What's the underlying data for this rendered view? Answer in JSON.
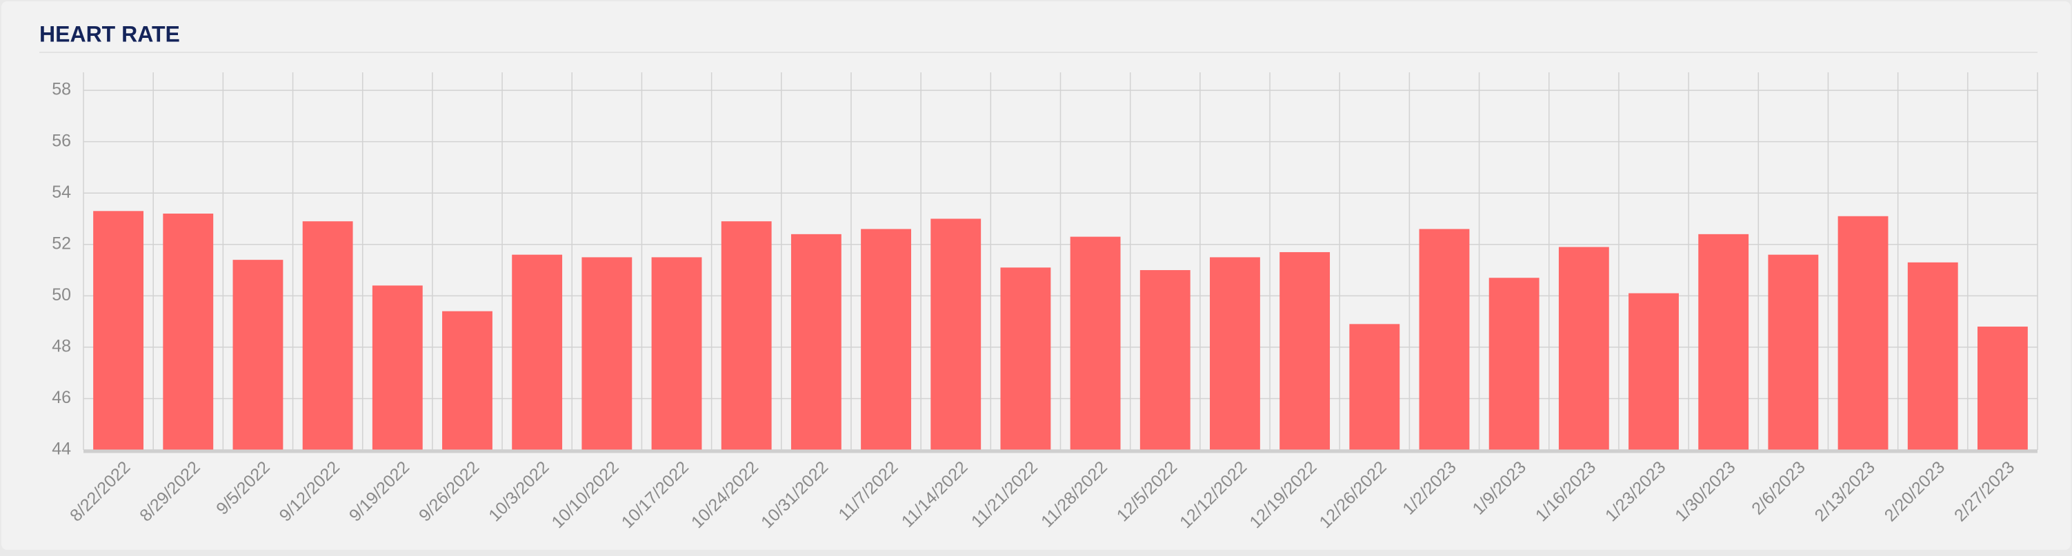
{
  "chart_data": {
    "type": "bar",
    "title": "HEART RATE",
    "categories": [
      "8/22/2022",
      "8/29/2022",
      "9/5/2022",
      "9/12/2022",
      "9/19/2022",
      "9/26/2022",
      "10/3/2022",
      "10/10/2022",
      "10/17/2022",
      "10/24/2022",
      "10/31/2022",
      "11/7/2022",
      "11/14/2022",
      "11/21/2022",
      "11/28/2022",
      "12/5/2022",
      "12/12/2022",
      "12/19/2022",
      "12/26/2022",
      "1/2/2023",
      "1/9/2023",
      "1/16/2023",
      "1/23/2023",
      "1/30/2023",
      "2/6/2023",
      "2/13/2023",
      "2/20/2023",
      "2/27/2023"
    ],
    "values": [
      53.3,
      53.2,
      51.4,
      52.9,
      50.4,
      49.4,
      51.6,
      51.5,
      51.5,
      52.9,
      52.4,
      52.6,
      53.0,
      51.1,
      52.3,
      51.0,
      51.5,
      51.7,
      48.9,
      52.6,
      50.7,
      51.9,
      50.1,
      52.4,
      51.6,
      53.1,
      51.3,
      48.8
    ],
    "color": "#ff6666",
    "ylim": [
      44,
      58.7
    ],
    "yticks": [
      44,
      46,
      48,
      50,
      52,
      54,
      56,
      58
    ],
    "grid": true
  }
}
